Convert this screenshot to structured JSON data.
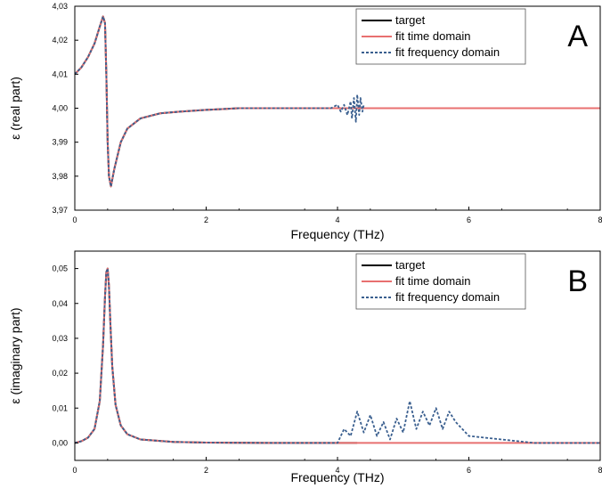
{
  "chart_data": [
    {
      "type": "line",
      "panel_letter": "A",
      "xlabel": "Frequency (THz)",
      "ylabel": "ε  (real part)",
      "xlim": [
        0,
        8
      ],
      "ylim": [
        3.97,
        4.03
      ],
      "x_ticks": [
        "0",
        "2",
        "4",
        "6",
        "8"
      ],
      "y_ticks": [
        "3,97",
        "3,98",
        "3,99",
        "4,00",
        "4,01",
        "4,02",
        "4,03"
      ],
      "grid": false,
      "legend_position": "top-right",
      "legend": [
        "target",
        "fit time domain",
        "fit frequency domain"
      ],
      "series": [
        {
          "name": "target",
          "color": "#000000",
          "style": "solid",
          "x": [
            0,
            0.1,
            0.2,
            0.3,
            0.38,
            0.43,
            0.46,
            0.48,
            0.5,
            0.52,
            0.55,
            0.6,
            0.7,
            0.8,
            1.0,
            1.3,
            1.6,
            2.0,
            2.5,
            3.0,
            3.5,
            4.0,
            4.3
          ],
          "y": [
            4.01,
            4.012,
            4.015,
            4.019,
            4.024,
            4.027,
            4.025,
            4.01,
            3.99,
            3.98,
            3.977,
            3.982,
            3.99,
            3.994,
            3.997,
            3.9985,
            3.999,
            3.9995,
            4.0,
            4.0,
            4.0,
            4.0,
            4.0
          ]
        },
        {
          "name": "fit time domain",
          "color": "#e87070",
          "style": "solid",
          "x": [
            0,
            0.1,
            0.2,
            0.3,
            0.38,
            0.43,
            0.46,
            0.48,
            0.5,
            0.52,
            0.55,
            0.6,
            0.7,
            0.8,
            1.0,
            1.3,
            1.6,
            2.0,
            2.5,
            3.0,
            3.5,
            4.0,
            5.0,
            6.0,
            7.0,
            8.0
          ],
          "y": [
            4.01,
            4.012,
            4.015,
            4.019,
            4.024,
            4.027,
            4.025,
            4.01,
            3.99,
            3.98,
            3.977,
            3.982,
            3.99,
            3.994,
            3.997,
            3.9985,
            3.999,
            3.9995,
            4.0,
            4.0,
            4.0,
            4.0,
            4.0,
            4.0,
            4.0,
            4.0
          ]
        },
        {
          "name": "fit frequency domain",
          "color": "#3a5f8f",
          "style": "dashed",
          "x": [
            0,
            0.1,
            0.2,
            0.3,
            0.38,
            0.43,
            0.46,
            0.48,
            0.5,
            0.52,
            0.55,
            0.6,
            0.7,
            0.8,
            1.0,
            1.3,
            1.6,
            2.0,
            2.5,
            3.0,
            3.5,
            3.9,
            4.0,
            4.05,
            4.1,
            4.15,
            4.2,
            4.22,
            4.25,
            4.28,
            4.3,
            4.33,
            4.35,
            4.38,
            4.4
          ],
          "y": [
            4.01,
            4.012,
            4.015,
            4.019,
            4.024,
            4.027,
            4.025,
            4.01,
            3.99,
            3.98,
            3.977,
            3.982,
            3.99,
            3.994,
            3.997,
            3.9985,
            3.999,
            3.9995,
            4.0,
            4.0,
            4.0,
            4.0,
            4.001,
            3.999,
            4.001,
            3.998,
            4.002,
            3.997,
            4.003,
            3.996,
            4.004,
            3.998,
            4.003,
            3.999,
            4.001
          ]
        }
      ]
    },
    {
      "type": "line",
      "panel_letter": "B",
      "xlabel": "Frequency (THz)",
      "ylabel": "ε  (imaginary part)",
      "xlim": [
        0,
        8
      ],
      "ylim": [
        -0.005,
        0.055
      ],
      "x_ticks": [
        "0",
        "2",
        "4",
        "6",
        "8"
      ],
      "y_ticks": [
        "0,00",
        "0,01",
        "0,02",
        "0,03",
        "0,04",
        "0,05"
      ],
      "grid": false,
      "legend_position": "top-right",
      "legend": [
        "target",
        "fit time domain",
        "fit frequency domain"
      ],
      "series": [
        {
          "name": "target",
          "color": "#000000",
          "style": "solid",
          "x": [
            0,
            0.1,
            0.2,
            0.3,
            0.38,
            0.43,
            0.46,
            0.48,
            0.5,
            0.52,
            0.54,
            0.57,
            0.62,
            0.7,
            0.8,
            1.0,
            1.5,
            2.0,
            3.0,
            4.0,
            4.3
          ],
          "y": [
            0.0,
            0.0005,
            0.0015,
            0.004,
            0.012,
            0.028,
            0.042,
            0.049,
            0.05,
            0.045,
            0.035,
            0.022,
            0.011,
            0.005,
            0.0025,
            0.001,
            0.0003,
            0.0001,
            0.0,
            0.0,
            0.0
          ]
        },
        {
          "name": "fit time domain",
          "color": "#e87070",
          "style": "solid",
          "x": [
            0,
            0.1,
            0.2,
            0.3,
            0.38,
            0.43,
            0.46,
            0.48,
            0.5,
            0.52,
            0.54,
            0.57,
            0.62,
            0.7,
            0.8,
            1.0,
            1.5,
            2.0,
            3.0,
            4.0,
            5.0,
            6.0,
            7.0,
            8.0
          ],
          "y": [
            0.0,
            0.0005,
            0.0015,
            0.004,
            0.012,
            0.028,
            0.042,
            0.049,
            0.05,
            0.045,
            0.035,
            0.022,
            0.011,
            0.005,
            0.0025,
            0.001,
            0.0003,
            0.0001,
            0.0,
            0.0,
            0.0,
            0.0,
            0.0,
            0.0
          ]
        },
        {
          "name": "fit frequency domain",
          "color": "#3a5f8f",
          "style": "dashed",
          "x": [
            0,
            0.1,
            0.2,
            0.3,
            0.38,
            0.43,
            0.46,
            0.48,
            0.5,
            0.52,
            0.54,
            0.57,
            0.62,
            0.7,
            0.8,
            1.0,
            1.5,
            2.0,
            3.0,
            4.0,
            4.1,
            4.2,
            4.3,
            4.4,
            4.5,
            4.6,
            4.7,
            4.8,
            4.9,
            5.0,
            5.1,
            5.2,
            5.3,
            5.4,
            5.5,
            5.6,
            5.7,
            5.8,
            5.9,
            6.0,
            7.0,
            8.0
          ],
          "y": [
            0.0,
            0.0005,
            0.0015,
            0.004,
            0.012,
            0.028,
            0.042,
            0.049,
            0.05,
            0.045,
            0.035,
            0.022,
            0.011,
            0.005,
            0.0025,
            0.001,
            0.0003,
            0.0001,
            0.0,
            0.0,
            0.004,
            0.002,
            0.009,
            0.003,
            0.008,
            0.002,
            0.006,
            0.001,
            0.007,
            0.003,
            0.012,
            0.004,
            0.009,
            0.005,
            0.01,
            0.004,
            0.009,
            0.006,
            0.004,
            0.002,
            0.0,
            0.0
          ]
        }
      ]
    }
  ]
}
